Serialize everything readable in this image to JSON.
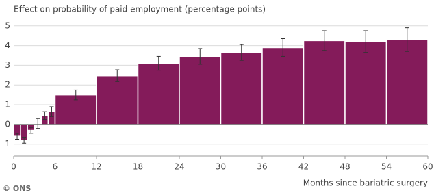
{
  "chart_data": {
    "type": "histogram",
    "title": "Effect on probability of paid employment (percentage points)",
    "xlabel": "Months since bariatric surgery",
    "source": "© ONS",
    "bins": [
      0,
      1,
      2,
      3,
      4,
      5,
      6,
      12,
      18,
      24,
      30,
      36,
      42,
      48,
      54,
      60
    ],
    "values": [
      -0.6,
      -0.8,
      -0.3,
      0.05,
      0.45,
      0.65,
      1.5,
      2.47,
      3.1,
      3.45,
      3.65,
      3.9,
      4.25,
      4.2,
      4.3
    ],
    "errors": [
      0.15,
      0.15,
      0.15,
      0.25,
      0.2,
      0.25,
      0.25,
      0.3,
      0.35,
      0.4,
      0.4,
      0.45,
      0.5,
      0.55,
      0.6
    ],
    "color": "#841b5a",
    "xlim": [
      0,
      60
    ],
    "xticks": [
      0,
      6,
      12,
      18,
      24,
      30,
      36,
      42,
      48,
      54,
      60
    ],
    "ylim": [
      -1.6,
      5.2
    ],
    "yticks": [
      -1,
      0,
      1,
      2,
      3,
      4,
      5
    ],
    "grid": true
  }
}
